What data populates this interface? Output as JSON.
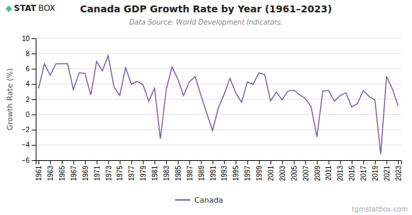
{
  "chart_data": {
    "type": "line",
    "title": "Canada GDP Growth Rate by Year (1961–2023)",
    "subtitle": "Data Source: World Development Indicators.",
    "y_label": "Growth Rate (%)",
    "x": [
      1961,
      1962,
      1963,
      1964,
      1965,
      1966,
      1967,
      1968,
      1969,
      1970,
      1971,
      1972,
      1973,
      1974,
      1975,
      1976,
      1977,
      1978,
      1979,
      1980,
      1981,
      1982,
      1983,
      1984,
      1985,
      1986,
      1987,
      1988,
      1989,
      1990,
      1991,
      1992,
      1993,
      1994,
      1995,
      1996,
      1997,
      1998,
      1999,
      2000,
      2001,
      2002,
      2003,
      2004,
      2005,
      2006,
      2007,
      2008,
      2009,
      2010,
      2011,
      2012,
      2013,
      2014,
      2015,
      2016,
      2017,
      2018,
      2019,
      2020,
      2021,
      2022,
      2023
    ],
    "series": [
      {
        "name": "Canada",
        "color": "#7B5EA7",
        "values": [
          3.45,
          6.65,
          5.16,
          6.65,
          6.68,
          6.67,
          3.26,
          5.48,
          5.39,
          2.55,
          6.95,
          5.74,
          7.71,
          3.62,
          2.51,
          6.15,
          3.97,
          4.35,
          3.91,
          1.76,
          3.46,
          -3.19,
          3.21,
          6.26,
          4.68,
          2.48,
          4.27,
          4.99,
          2.52,
          0.16,
          -2.09,
          0.88,
          2.66,
          4.76,
          2.83,
          1.6,
          4.28,
          3.98,
          5.48,
          5.23,
          1.79,
          2.94,
          1.94,
          3.09,
          3.19,
          2.62,
          2.09,
          1.0,
          -2.95,
          3.08,
          3.14,
          1.75,
          2.48,
          2.86,
          0.99,
          1.44,
          3.17,
          2.37,
          1.89,
          -5.24,
          5.02,
          3.36,
          1.15
        ]
      }
    ],
    "xlim": [
      1960.5,
      2023.5
    ],
    "xticks": [
      1961,
      1963,
      1965,
      1967,
      1969,
      1971,
      1973,
      1975,
      1977,
      1979,
      1981,
      1983,
      1985,
      1987,
      1989,
      1991,
      1993,
      1995,
      1997,
      1999,
      2001,
      2003,
      2005,
      2007,
      2009,
      2011,
      2013,
      2015,
      2017,
      2019,
      2021,
      2023
    ],
    "ylim": [
      -6,
      10
    ],
    "yticks": [
      -6,
      -4,
      -2,
      0,
      2,
      4,
      6,
      8,
      10
    ],
    "grid": true,
    "legend": "bottom",
    "annotations": [
      {
        "text": "◆",
        "color": "#4db8a4"
      },
      {
        "text": "STAT",
        "color": "#222222"
      },
      {
        "text": "BOX",
        "color": "#222222"
      },
      {
        "text": "tgmstatbox.com",
        "color": "#aaaaaa"
      }
    ]
  }
}
